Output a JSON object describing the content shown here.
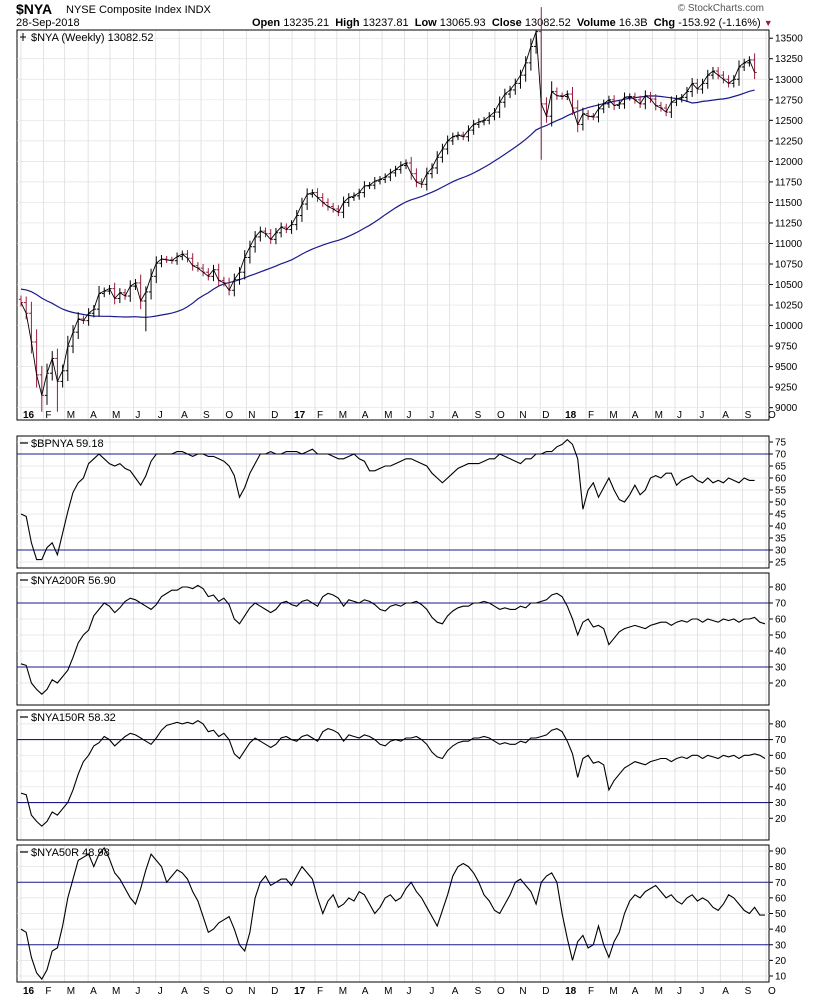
{
  "header": {
    "symbol": "$NYA",
    "name": "NYSE Composite Index INDX",
    "date": "28-Sep-2018",
    "open_label": "Open",
    "open": "13235.21",
    "high_label": "High",
    "high": "13237.81",
    "low_label": "Low",
    "low": "13065.93",
    "close_label": "Close",
    "close": "13082.52",
    "volume_label": "Volume",
    "volume": "16.3B",
    "chg_label": "Chg",
    "chg": "-153.92 (-1.16%)",
    "watermark": "© StockCharts.com"
  },
  "colors": {
    "up": "#000000",
    "down": "#9b1c3c",
    "ma": "#1a1a8c",
    "ref": "#1a1a8c",
    "chg": "#9b1c3c"
  },
  "x_axis": {
    "months": [
      {
        "label": "16",
        "pos": 0.0,
        "year": true
      },
      {
        "label": "F",
        "pos": 4.3
      },
      {
        "label": "M",
        "pos": 8.4
      },
      {
        "label": "A",
        "pos": 12.9
      },
      {
        "label": "M",
        "pos": 17.1
      },
      {
        "label": "J",
        "pos": 21.6
      },
      {
        "label": "J",
        "pos": 25.9
      },
      {
        "label": "A",
        "pos": 30.4
      },
      {
        "label": "S",
        "pos": 34.6
      },
      {
        "label": "O",
        "pos": 38.9
      },
      {
        "label": "N",
        "pos": 43.3
      },
      {
        "label": "D",
        "pos": 47.7
      },
      {
        "label": "17",
        "pos": 52.1,
        "year": true
      },
      {
        "label": "F",
        "pos": 56.5
      },
      {
        "label": "M",
        "pos": 60.7
      },
      {
        "label": "A",
        "pos": 65.1
      },
      {
        "label": "M",
        "pos": 69.4
      },
      {
        "label": "J",
        "pos": 73.7
      },
      {
        "label": "J",
        "pos": 78.1
      },
      {
        "label": "A",
        "pos": 82.4
      },
      {
        "label": "S",
        "pos": 86.8
      },
      {
        "label": "O",
        "pos": 91.1
      },
      {
        "label": "N",
        "pos": 95.4
      },
      {
        "label": "D",
        "pos": 99.8
      },
      {
        "label": "18",
        "pos": 104.2,
        "year": true
      },
      {
        "label": "F",
        "pos": 108.6
      },
      {
        "label": "M",
        "pos": 112.7
      },
      {
        "label": "A",
        "pos": 117.0
      },
      {
        "label": "M",
        "pos": 121.4
      },
      {
        "label": "J",
        "pos": 125.7
      },
      {
        "label": "J",
        "pos": 130.0
      },
      {
        "label": "A",
        "pos": 134.4
      },
      {
        "label": "S",
        "pos": 138.7
      },
      {
        "label": "O",
        "pos": 143.2
      }
    ],
    "weeks": 144
  },
  "chart_data": [
    {
      "type": "ohlc",
      "legend": "$NYA (Weekly) 13082.52",
      "ylim": [
        8850,
        13600
      ],
      "yticks": [
        9000,
        9250,
        9500,
        9750,
        10000,
        10250,
        10500,
        10750,
        11000,
        11250,
        11500,
        11750,
        12000,
        12250,
        12500,
        12750,
        13000,
        13250,
        13500
      ],
      "close_weekly": [
        10280,
        10150,
        9800,
        9400,
        9150,
        9420,
        9600,
        9320,
        9450,
        9750,
        9920,
        10080,
        10060,
        10150,
        10200,
        10390,
        10420,
        10450,
        10330,
        10400,
        10360,
        10480,
        10520,
        10300,
        10410,
        10600,
        10760,
        10810,
        10800,
        10790,
        10840,
        10870,
        10820,
        10730,
        10700,
        10650,
        10600,
        10680,
        10550,
        10520,
        10430,
        10560,
        10650,
        10830,
        10960,
        11080,
        11150,
        11120,
        11050,
        11130,
        11200,
        11170,
        11230,
        11340,
        11480,
        11600,
        11620,
        11560,
        11500,
        11450,
        11420,
        11380,
        11500,
        11560,
        11580,
        11620,
        11700,
        11710,
        11760,
        11780,
        11810,
        11860,
        11900,
        11950,
        11980,
        11850,
        11750,
        11720,
        11850,
        11920,
        12050,
        12150,
        12250,
        12300,
        12320,
        12300,
        12380,
        12450,
        12480,
        12500,
        12550,
        12600,
        12720,
        12820,
        12870,
        12950,
        13050,
        13200,
        13400,
        13580,
        12700,
        12550,
        12850,
        12800,
        12790,
        12820,
        12650,
        12450,
        12580,
        12550,
        12540,
        12640,
        12700,
        12750,
        12680,
        12700,
        12780,
        12790,
        12750,
        12700,
        12800,
        12760,
        12680,
        12650,
        12600,
        12720,
        12760,
        12780,
        12850,
        12950,
        12880,
        12950,
        13050,
        13100,
        13050,
        13000,
        12950,
        13000,
        13150,
        13200,
        13235,
        13082
      ],
      "ma30_start": 10450,
      "key_points": {
        "low_2016": 8950,
        "high_jan_2018": 13600,
        "last": 13082.52
      }
    },
    {
      "type": "line",
      "legend": "$BPNYA 59.18",
      "ylim": [
        25,
        75
      ],
      "yticks": [
        25,
        30,
        35,
        40,
        45,
        50,
        55,
        60,
        65,
        70,
        75
      ],
      "ref_lines": [
        70,
        30
      ],
      "values": [
        45,
        44,
        33,
        26,
        26,
        31,
        33,
        28,
        37,
        46,
        54,
        58,
        60,
        66,
        68,
        70,
        68,
        66,
        65,
        66,
        64,
        63,
        60,
        57,
        61,
        67,
        70,
        70,
        70,
        70,
        71,
        71,
        70,
        69,
        70,
        70,
        69,
        69,
        68,
        67,
        65,
        61,
        52,
        56,
        62,
        66,
        70,
        70,
        71,
        70,
        70,
        71,
        71,
        71,
        70,
        71,
        72,
        70,
        70,
        70,
        69,
        68,
        68,
        69,
        70,
        68,
        67,
        63,
        63,
        64,
        65,
        65,
        66,
        67,
        68,
        68,
        67,
        66,
        65,
        62,
        60,
        58,
        60,
        62,
        64,
        65,
        66,
        66,
        66,
        67,
        68,
        68,
        70,
        69,
        68,
        67,
        66,
        68,
        68,
        70,
        70,
        71,
        71,
        73,
        74,
        76,
        74,
        68,
        47,
        55,
        58,
        52,
        56,
        60,
        55,
        51,
        50,
        53,
        57,
        53,
        55,
        60,
        61,
        60,
        62,
        62,
        57,
        59,
        60,
        61,
        59,
        58,
        60,
        58,
        59,
        58,
        60,
        59,
        58,
        60,
        59,
        59
      ]
    },
    {
      "type": "line",
      "legend": "$NYA200R 56.90",
      "ylim": [
        10,
        85
      ],
      "yticks": [
        20,
        30,
        40,
        50,
        60,
        70,
        80
      ],
      "ref_lines": [
        70,
        30
      ],
      "values": [
        32,
        31,
        20,
        16,
        13,
        16,
        22,
        20,
        24,
        28,
        36,
        45,
        50,
        53,
        62,
        66,
        70,
        68,
        64,
        67,
        71,
        73,
        72,
        70,
        68,
        66,
        69,
        74,
        76,
        78,
        78,
        80,
        80,
        79,
        81,
        79,
        74,
        75,
        71,
        73,
        69,
        60,
        57,
        62,
        67,
        70,
        68,
        66,
        64,
        66,
        70,
        71,
        69,
        68,
        71,
        72,
        70,
        68,
        74,
        76,
        75,
        73,
        68,
        72,
        71,
        70,
        72,
        71,
        69,
        66,
        65,
        68,
        69,
        68,
        70,
        70,
        71,
        69,
        66,
        61,
        58,
        57,
        62,
        65,
        67,
        68,
        68,
        70,
        70,
        71,
        70,
        68,
        66,
        67,
        66,
        66,
        68,
        67,
        70,
        70,
        71,
        72,
        75,
        76,
        74,
        68,
        60,
        50,
        58,
        60,
        55,
        56,
        54,
        44,
        48,
        52,
        54,
        55,
        56,
        55,
        54,
        56,
        57,
        58,
        58,
        56,
        58,
        59,
        58,
        60,
        60,
        58,
        60,
        59,
        58,
        60,
        59,
        60,
        58,
        60,
        60,
        61,
        58,
        57
      ]
    },
    {
      "type": "line",
      "legend": "$NYA150R 58.32",
      "ylim": [
        10,
        85
      ],
      "yticks": [
        20,
        30,
        40,
        50,
        60,
        70,
        80
      ],
      "ref_lines": [
        70,
        30
      ],
      "values": [
        36,
        35,
        22,
        18,
        15,
        18,
        24,
        22,
        26,
        30,
        38,
        48,
        56,
        60,
        66,
        68,
        72,
        70,
        66,
        69,
        72,
        74,
        73,
        71,
        69,
        67,
        71,
        76,
        79,
        80,
        81,
        80,
        81,
        80,
        82,
        80,
        75,
        76,
        72,
        74,
        70,
        61,
        58,
        63,
        68,
        71,
        69,
        67,
        65,
        67,
        71,
        72,
        70,
        69,
        72,
        73,
        71,
        69,
        75,
        77,
        76,
        74,
        69,
        73,
        72,
        71,
        73,
        72,
        70,
        67,
        66,
        69,
        70,
        69,
        71,
        71,
        72,
        70,
        67,
        62,
        59,
        58,
        63,
        66,
        68,
        69,
        69,
        71,
        71,
        72,
        71,
        69,
        67,
        68,
        67,
        67,
        69,
        68,
        71,
        71,
        72,
        73,
        76,
        77,
        75,
        69,
        61,
        46,
        58,
        60,
        55,
        56,
        54,
        38,
        44,
        48,
        52,
        54,
        56,
        55,
        54,
        56,
        57,
        58,
        58,
        56,
        58,
        59,
        58,
        60,
        60,
        58,
        60,
        59,
        58,
        60,
        59,
        60,
        58,
        60,
        60,
        61,
        60,
        58
      ]
    },
    {
      "type": "line",
      "legend": "$NYA50R 48.98",
      "ylim": [
        10,
        90
      ],
      "yticks": [
        10,
        20,
        30,
        40,
        50,
        60,
        70,
        80,
        90
      ],
      "ref_lines": [
        70,
        30
      ],
      "values": [
        40,
        38,
        22,
        12,
        8,
        14,
        26,
        28,
        42,
        60,
        72,
        84,
        86,
        88,
        80,
        88,
        92,
        85,
        76,
        72,
        66,
        60,
        56,
        66,
        78,
        88,
        84,
        80,
        70,
        74,
        78,
        76,
        72,
        64,
        58,
        48,
        38,
        40,
        44,
        46,
        48,
        40,
        30,
        26,
        38,
        60,
        70,
        74,
        68,
        70,
        72,
        72,
        68,
        74,
        80,
        76,
        72,
        60,
        50,
        58,
        62,
        54,
        56,
        60,
        58,
        64,
        62,
        56,
        50,
        54,
        60,
        62,
        58,
        60,
        66,
        70,
        64,
        60,
        54,
        48,
        42,
        52,
        62,
        74,
        80,
        82,
        80,
        76,
        70,
        62,
        58,
        52,
        50,
        56,
        62,
        70,
        72,
        68,
        64,
        56,
        70,
        74,
        76,
        70,
        50,
        34,
        20,
        32,
        36,
        28,
        30,
        42,
        30,
        22,
        32,
        38,
        50,
        58,
        62,
        60,
        64,
        66,
        68,
        64,
        60,
        62,
        58,
        56,
        60,
        62,
        58,
        60,
        58,
        54,
        52,
        56,
        62,
        60,
        56,
        52,
        50,
        54,
        49,
        49
      ]
    }
  ]
}
